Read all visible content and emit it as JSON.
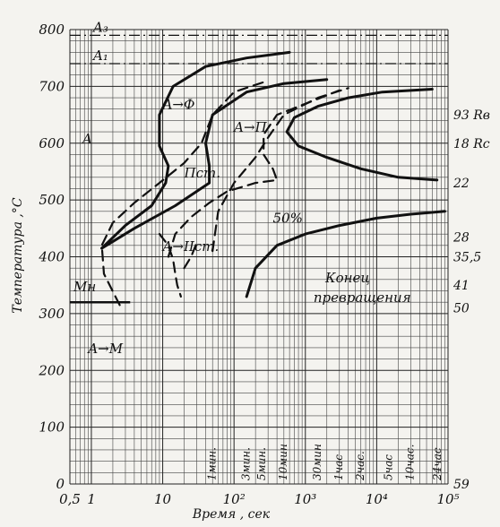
{
  "chart_data": {
    "type": "line",
    "xscale": "log",
    "xlim": [
      0.5,
      100000
    ],
    "ylim": [
      0,
      800
    ],
    "xlabel": "Время , сек",
    "ylabel": "Температура ,°С",
    "x_tick_labels": [
      {
        "x": 0.5,
        "label": "0,5"
      },
      {
        "x": 1,
        "label": "1"
      },
      {
        "x": 10,
        "label": "10"
      },
      {
        "x": 100,
        "label": "10²"
      },
      {
        "x": 1000,
        "label": "10³"
      },
      {
        "x": 10000,
        "label": "10⁴"
      },
      {
        "x": 100000,
        "label": "10⁵"
      }
    ],
    "y_ticks": [
      0,
      100,
      200,
      300,
      400,
      500,
      600,
      700,
      800
    ],
    "critical_lines": [
      {
        "name": "A3",
        "label": "A₃",
        "y": 790
      },
      {
        "name": "A1",
        "label": "A₁",
        "y": 740
      }
    ],
    "ms_line": {
      "label": "Mн",
      "y": 320,
      "x_end": 3.5
    },
    "time_markers": [
      {
        "x": 60,
        "label": "1мин."
      },
      {
        "x": 180,
        "label": "3мин."
      },
      {
        "x": 300,
        "label": "5мин."
      },
      {
        "x": 600,
        "label": "10мин"
      },
      {
        "x": 1800,
        "label": "30мин"
      },
      {
        "x": 3600,
        "label": "1час"
      },
      {
        "x": 7200,
        "label": "2час."
      },
      {
        "x": 18000,
        "label": "5час"
      },
      {
        "x": 36000,
        "label": "10час."
      },
      {
        "x": 86400,
        "label": "24час"
      }
    ],
    "region_labels": [
      {
        "text": "A",
        "x": 0.75,
        "y": 600
      },
      {
        "text": "A→Ф",
        "x": 10,
        "y": 660
      },
      {
        "text": "A→П",
        "x": 100,
        "y": 620
      },
      {
        "text": "Пст.",
        "x": 20,
        "y": 540
      },
      {
        "text": "A→IIст.",
        "x": 10,
        "y": 410
      },
      {
        "text": "50%",
        "x": 350,
        "y": 460
      },
      {
        "text": "A→M",
        "x": 0.9,
        "y": 230
      },
      {
        "text": "Конец",
        "x": 1900,
        "y": 355
      },
      {
        "text": "превращения",
        "x": 1300,
        "y": 320
      }
    ],
    "hardness_labels": [
      {
        "y": 650,
        "text": "93 Rв"
      },
      {
        "y": 600,
        "text": "18 Rс"
      },
      {
        "y": 530,
        "text": "22"
      },
      {
        "y": 435,
        "text": "28"
      },
      {
        "y": 400,
        "text": "35,5"
      },
      {
        "y": 350,
        "text": "41"
      },
      {
        "y": 310,
        "text": "50"
      },
      {
        "y": 0,
        "text": "59"
      }
    ],
    "series": [
      {
        "role": "start",
        "style": "dashed",
        "points": [
          [
            2.5,
            315
          ],
          [
            1.5,
            370
          ],
          [
            1.4,
            420
          ],
          [
            2,
            460
          ],
          [
            4,
            495
          ],
          [
            9,
            530
          ],
          [
            20,
            565
          ],
          [
            35,
            600
          ],
          [
            50,
            650
          ],
          [
            100,
            690
          ],
          [
            300,
            710
          ]
        ]
      },
      {
        "role": "end",
        "style": "solid",
        "points": [
          [
            1.4,
            415
          ],
          [
            3,
            455
          ],
          [
            7,
            490
          ],
          [
            11,
            530
          ],
          [
            12,
            560
          ],
          [
            9,
            595
          ],
          [
            9,
            650
          ],
          [
            14,
            700
          ],
          [
            40,
            735
          ],
          [
            150,
            750
          ],
          [
            600,
            760
          ]
        ]
      },
      {
        "role": "end",
        "style": "solid",
        "points": [
          [
            1.4,
            415
          ],
          [
            4,
            450
          ],
          [
            15,
            490
          ],
          [
            45,
            530
          ],
          [
            45,
            560
          ],
          [
            40,
            600
          ],
          [
            50,
            650
          ],
          [
            150,
            690
          ],
          [
            500,
            705
          ],
          [
            2000,
            712
          ]
        ]
      },
      {
        "role": "start",
        "style": "dashed",
        "points": [
          [
            50,
            410
          ],
          [
            60,
            480
          ],
          [
            100,
            530
          ],
          [
            200,
            575
          ],
          [
            300,
            610
          ],
          [
            500,
            650
          ],
          [
            1500,
            680
          ],
          [
            4000,
            697
          ]
        ]
      },
      {
        "role": "end",
        "style": "dashed",
        "points": [
          [
            12,
            400
          ],
          [
            15,
            440
          ],
          [
            25,
            470
          ],
          [
            45,
            495
          ],
          [
            80,
            515
          ],
          [
            200,
            530
          ],
          [
            400,
            535
          ],
          [
            350,
            555
          ],
          [
            260,
            580
          ],
          [
            260,
            615
          ],
          [
            400,
            650
          ],
          [
            1500,
            678
          ],
          [
            3000,
            693
          ]
        ]
      },
      {
        "role": "end",
        "style": "solid",
        "points": [
          [
            70000,
            535
          ],
          [
            20000,
            540
          ],
          [
            6000,
            555
          ],
          [
            2000,
            575
          ],
          [
            800,
            595
          ],
          [
            550,
            620
          ],
          [
            700,
            645
          ],
          [
            1500,
            665
          ],
          [
            4000,
            680
          ],
          [
            12000,
            690
          ],
          [
            60000,
            695
          ]
        ]
      },
      {
        "role": "end",
        "style": "solid",
        "points": [
          [
            150,
            330
          ],
          [
            200,
            380
          ],
          [
            400,
            420
          ],
          [
            1000,
            440
          ],
          [
            3000,
            455
          ],
          [
            10000,
            468
          ],
          [
            30000,
            475
          ],
          [
            90000,
            480
          ]
        ]
      },
      {
        "role": "start",
        "style": "dashed",
        "points": [
          [
            9,
            440
          ],
          [
            12,
            420
          ],
          [
            14,
            395
          ],
          [
            15,
            370
          ],
          [
            16,
            350
          ],
          [
            18,
            330
          ]
        ]
      },
      {
        "role": "start",
        "style": "dashed",
        "points": [
          [
            20,
            380
          ],
          [
            25,
            400
          ],
          [
            30,
            425
          ]
        ]
      }
    ]
  }
}
